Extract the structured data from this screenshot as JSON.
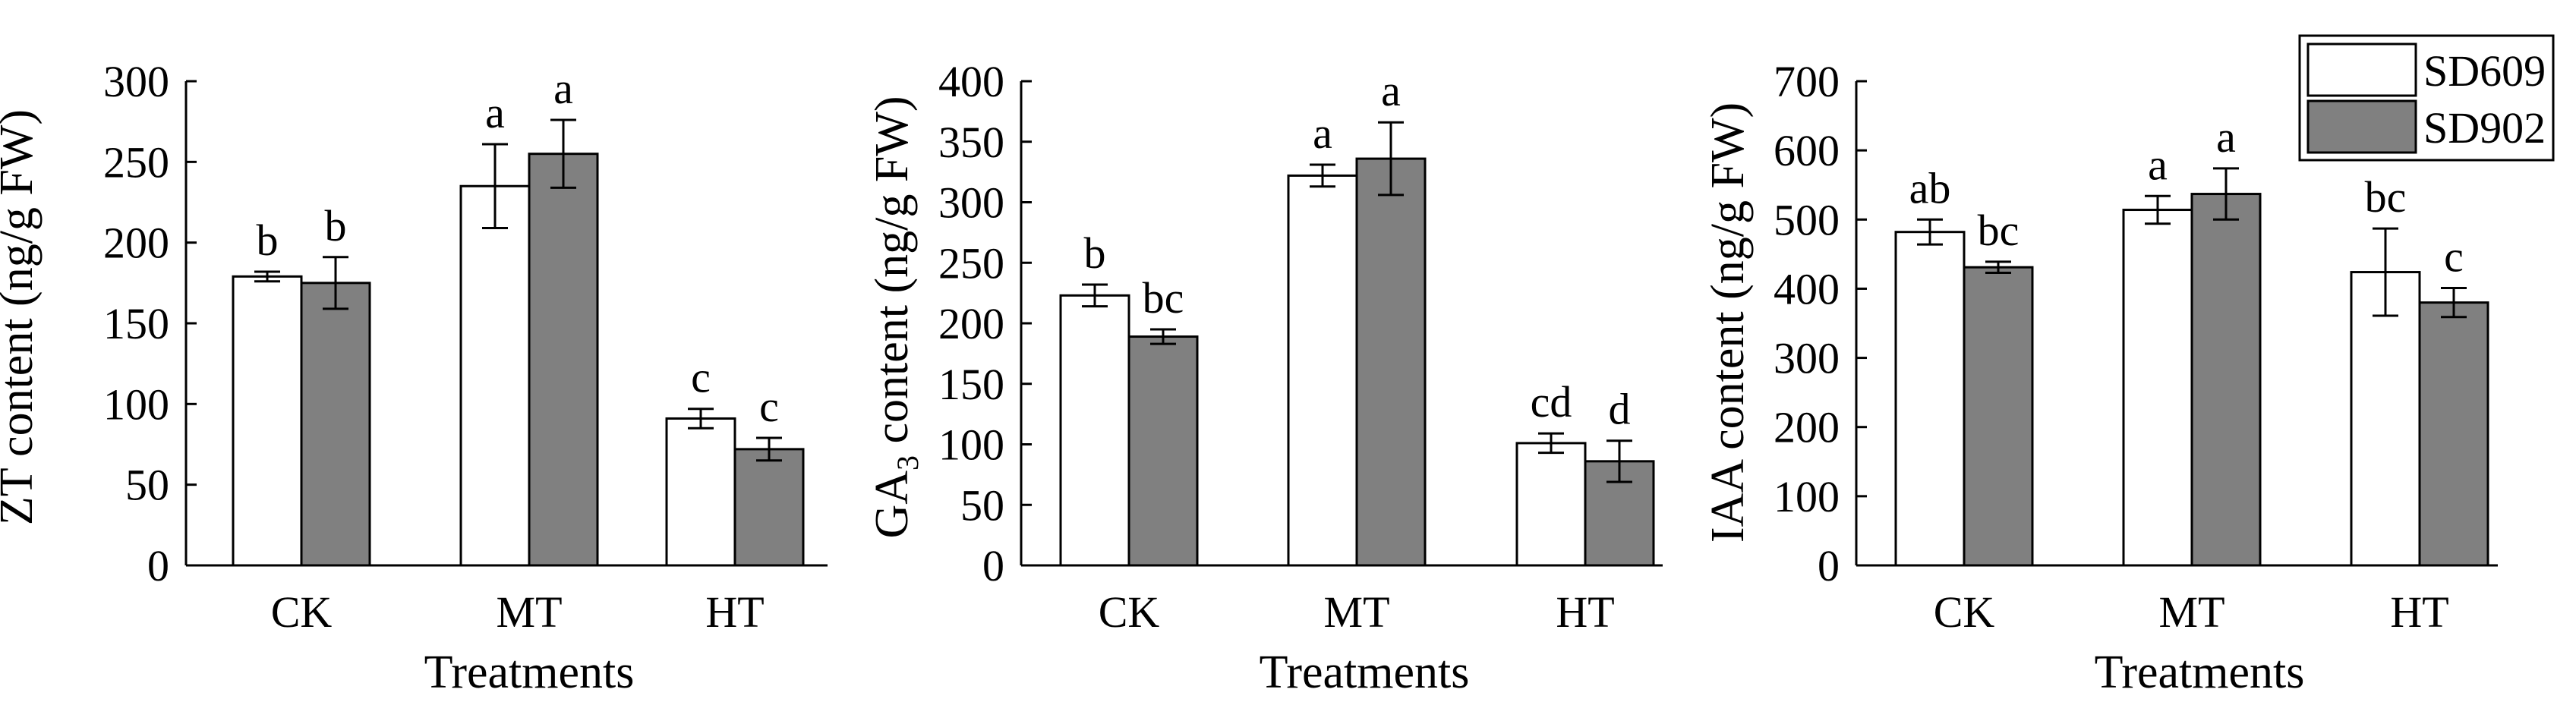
{
  "legend": {
    "series": [
      {
        "name": "SD609",
        "fill": "#ffffff"
      },
      {
        "name": "SD902",
        "fill": "#808080"
      }
    ]
  },
  "chart_data": [
    {
      "type": "bar",
      "categories": [
        "CK",
        "MT",
        "HT"
      ],
      "xlabel": "Treatments",
      "ylabel": "ZT content (ng/g FW)",
      "ylim": [
        0,
        300
      ],
      "yticks": [
        0,
        50,
        100,
        150,
        200,
        250,
        300
      ],
      "series": [
        {
          "name": "SD609",
          "values": [
            179,
            235,
            91
          ],
          "errors": [
            3,
            26,
            6
          ],
          "letters": [
            "b",
            "a",
            "c"
          ]
        },
        {
          "name": "SD902",
          "values": [
            175,
            255,
            72
          ],
          "errors": [
            16,
            21,
            7
          ],
          "letters": [
            "b",
            "a",
            "c"
          ]
        }
      ]
    },
    {
      "type": "bar",
      "categories": [
        "CK",
        "MT",
        "HT"
      ],
      "xlabel": "Treatments",
      "ylabel_parts": [
        "GA",
        "3",
        " content (ng/g FW)"
      ],
      "ylim": [
        0,
        400
      ],
      "yticks": [
        0,
        50,
        100,
        150,
        200,
        250,
        300,
        350,
        400
      ],
      "series": [
        {
          "name": "SD609",
          "values": [
            223,
            322,
            101
          ],
          "errors": [
            9,
            9,
            8
          ],
          "letters": [
            "b",
            "a",
            "cd"
          ]
        },
        {
          "name": "SD902",
          "values": [
            189,
            336,
            86
          ],
          "errors": [
            6,
            30,
            17
          ],
          "letters": [
            "bc",
            "a",
            "d"
          ]
        }
      ]
    },
    {
      "type": "bar",
      "categories": [
        "CK",
        "MT",
        "HT"
      ],
      "xlabel": "Treatments",
      "ylabel": "IAA content (ng/g FW)",
      "ylim": [
        0,
        700
      ],
      "yticks": [
        0,
        100,
        200,
        300,
        400,
        500,
        600,
        700
      ],
      "series": [
        {
          "name": "SD609",
          "values": [
            482,
            514,
            424
          ],
          "errors": [
            18,
            20,
            63
          ],
          "letters": [
            "ab",
            "a",
            "bc"
          ]
        },
        {
          "name": "SD902",
          "values": [
            431,
            537,
            380
          ],
          "errors": [
            8,
            37,
            21
          ],
          "letters": [
            "bc",
            "a",
            "c"
          ]
        }
      ]
    }
  ]
}
